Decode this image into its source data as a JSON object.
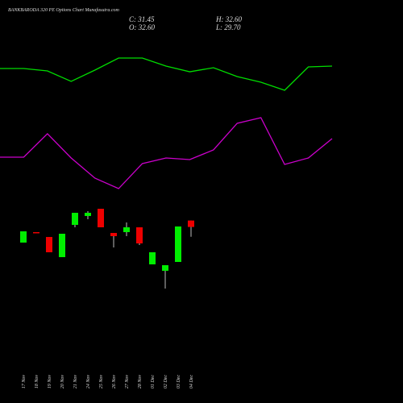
{
  "chart_data": [
    {
      "type": "candlestick",
      "title": "BANKBARODA 320  PE Options  Chart Munafasutra.com",
      "ohlc_labels": [
        "C: 31.45",
        "H: 32.60",
        "O: 32.60",
        "L: 29.70"
      ],
      "categories": [
        "17 Nov",
        "18 Nov",
        "19 Nov",
        "20 Nov",
        "21 Nov",
        "24 Nov",
        "25 Nov",
        "26 Nov",
        "27 Nov",
        "28 Nov",
        "01 Dec",
        "02 Dec",
        "03 Dec",
        "04 Dec"
      ],
      "open": [
        28.66,
        30.53,
        29.66,
        26.06,
        31.82,
        33.41,
        34.7,
        30.38,
        30.53,
        31.39,
        24.77,
        23.62,
        25.2,
        32.6
      ],
      "high": [
        30.67,
        30.53,
        29.66,
        30.24,
        33.98,
        34.27,
        34.7,
        30.38,
        32.26,
        31.39,
        26.93,
        24.62,
        31.54,
        32.6
      ],
      "low": [
        28.66,
        30.38,
        26.93,
        26.06,
        31.39,
        32.83,
        31.39,
        27.79,
        29.81,
        28.22,
        24.77,
        20.45,
        25.2,
        29.7
      ],
      "close": [
        30.67,
        30.38,
        26.93,
        30.24,
        33.98,
        33.98,
        31.39,
        29.81,
        31.39,
        28.51,
        26.93,
        24.62,
        31.54,
        31.45
      ],
      "up_color": "#00ee00",
      "down_color": "#ee0000",
      "ylim": [
        0,
        72
      ]
    },
    {
      "type": "line",
      "categories": [
        null,
        null,
        null,
        null,
        null,
        null,
        null,
        null,
        null,
        null,
        null,
        null,
        null,
        null,
        null
      ],
      "series": [
        {
          "color": "#00dd00",
          "values": [
            59.76,
            59.76,
            59.33,
            57.46,
            59.47,
            61.63,
            61.63,
            60.19,
            59.18,
            59.9,
            58.32,
            57.31,
            55.87,
            60.05,
            60.19
          ]
        },
        {
          "color": "#cc00cc",
          "values": [
            43.92,
            43.92,
            48.1,
            43.78,
            40.18,
            38.3,
            42.77,
            43.78,
            43.49,
            45.22,
            49.97,
            50.98,
            42.62,
            43.78,
            47.23
          ]
        }
      ],
      "ylim": [
        0,
        72
      ]
    }
  ]
}
